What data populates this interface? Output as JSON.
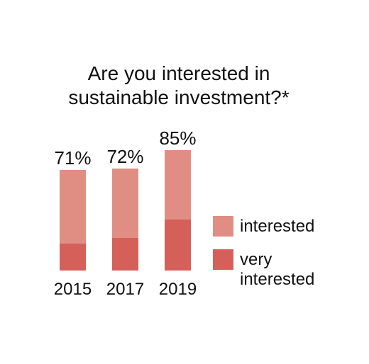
{
  "chart_data": {
    "type": "bar",
    "stacked": true,
    "title_lines": [
      "Are you interested in",
      "sustainable investment?*"
    ],
    "categories": [
      "2015",
      "2017",
      "2019"
    ],
    "totals": [
      "71%",
      "72%",
      "85%"
    ],
    "ylim": [
      0,
      100
    ],
    "series": [
      {
        "name": "very interested",
        "values": [
          19,
          23,
          36
        ],
        "color": "#d5605a"
      },
      {
        "name": "interested",
        "values": [
          52,
          49,
          49
        ],
        "color": "#e08e84"
      }
    ],
    "legend": {
      "position": "right",
      "items": [
        {
          "lines": [
            "interested"
          ],
          "color": "#e08e84"
        },
        {
          "lines": [
            "very",
            "interested"
          ],
          "color": "#d5605a"
        }
      ]
    }
  }
}
